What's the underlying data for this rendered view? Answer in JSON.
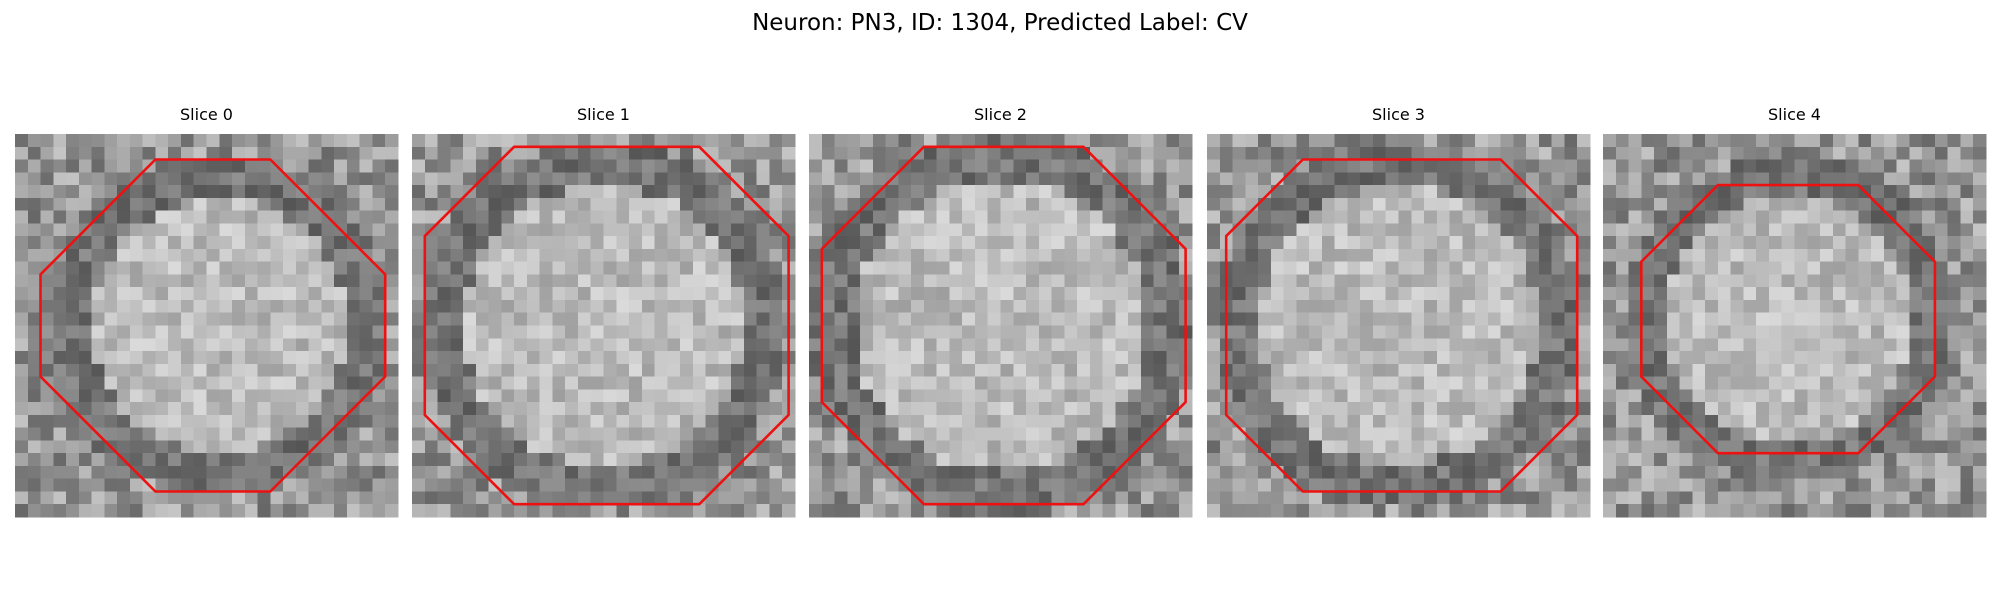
{
  "title": "Neuron: PN3, ID: 1304, Predicted Label: CV",
  "panels": [
    {
      "title": "Slice 0"
    },
    {
      "title": "Slice 1"
    },
    {
      "title": "Slice 2"
    },
    {
      "title": "Slice 3"
    },
    {
      "title": "Slice 4"
    }
  ]
}
